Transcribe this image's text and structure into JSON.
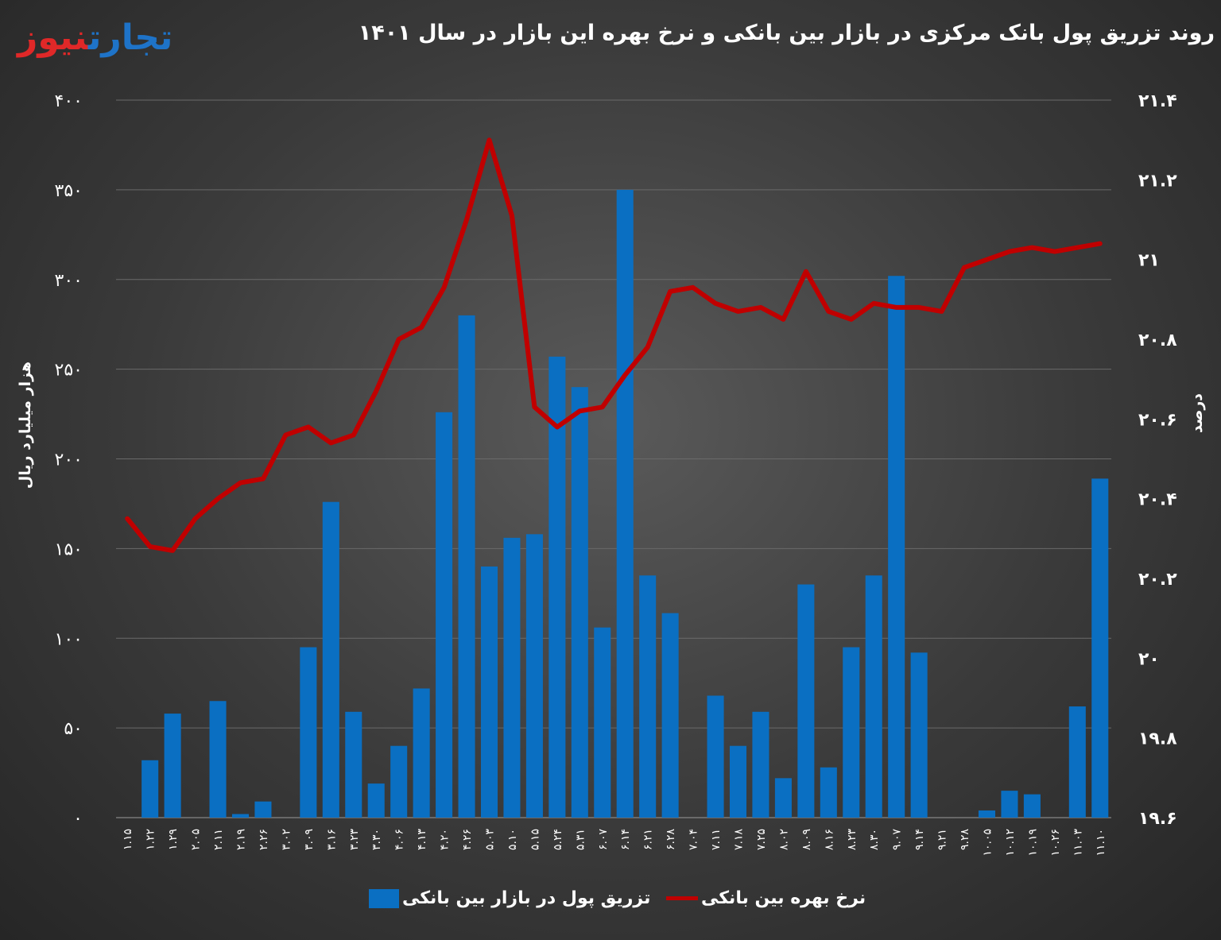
{
  "logo": {
    "part1": "نیوز",
    "part2": "تجارت"
  },
  "chart_data": {
    "type": "bar+line",
    "title": "روند تزریق پول بانک مرکزی در بازار بین بانکی و نرخ بهره این بازار در سال ۱۴۰۱",
    "ylabel_left": "هزار میلیارد ریال",
    "ylabel_right": "درصد",
    "ylim_left": [
      0,
      400
    ],
    "ylim_right": [
      19.6,
      21.4
    ],
    "yticks_left": [
      "۰",
      "۵۰",
      "۱۰۰",
      "۱۵۰",
      "۲۰۰",
      "۲۵۰",
      "۳۰۰",
      "۳۵۰",
      "۴۰۰"
    ],
    "yticks_right": [
      "۱۹.۶",
      "۱۹.۸",
      "۲۰",
      "۲۰.۲",
      "۲۰.۴",
      "۲۰.۶",
      "۲۰.۸",
      "۲۱",
      "۲۱.۲",
      "۲۱.۴"
    ],
    "categories": [
      "۱.۱۵",
      "۱.۲۲",
      "۱.۲۹",
      "۲.۰۵",
      "۲.۱۱",
      "۲.۱۹",
      "۲.۲۶",
      "۳.۰۲",
      "۳.۰۹",
      "۳.۱۶",
      "۳.۲۳",
      "۳.۳۰",
      "۴.۰۶",
      "۴.۱۳",
      "۴.۲۰",
      "۴.۲۶",
      "۵.۰۳",
      "۵.۱۰",
      "۵.۱۵",
      "۵.۲۴",
      "۵.۳۱",
      "۶.۰۷",
      "۶.۱۴",
      "۶.۲۱",
      "۶.۲۸",
      "۷.۰۴",
      "۷.۱۱",
      "۷.۱۸",
      "۷.۲۵",
      "۸.۰۲",
      "۸.۰۹",
      "۸.۱۶",
      "۸.۲۳",
      "۸.۳۰",
      "۹.۰۷",
      "۹.۱۴",
      "۹.۲۱",
      "۹.۲۸",
      "۱۰.۰۵",
      "۱۰.۱۲",
      "۱۰.۱۹",
      "۱۰.۲۶",
      "۱۱.۰۳",
      "۱۱.۱۰"
    ],
    "series": [
      {
        "name": "تزریق پول در بازار بین بانکی",
        "kind": "bar",
        "color": "#0a6fc2",
        "values": [
          0,
          32,
          58,
          0,
          65,
          2,
          9,
          0,
          95,
          176,
          59,
          19,
          40,
          72,
          226,
          280,
          140,
          156,
          158,
          257,
          240,
          106,
          350,
          135,
          114,
          0,
          68,
          40,
          59,
          22,
          130,
          28,
          95,
          135,
          302,
          92,
          0,
          0,
          4,
          15,
          13,
          0,
          62,
          189
        ]
      },
      {
        "name": "نرخ بهره بین بانکی",
        "kind": "line",
        "color": "#c00000",
        "values": [
          20.35,
          20.28,
          20.27,
          20.35,
          20.4,
          20.44,
          20.45,
          20.56,
          20.58,
          20.54,
          20.56,
          20.67,
          20.8,
          20.83,
          20.93,
          21.1,
          21.3,
          21.11,
          20.63,
          20.58,
          20.62,
          20.63,
          20.71,
          20.78,
          20.92,
          20.93,
          20.89,
          20.87,
          20.88,
          20.85,
          20.97,
          20.87,
          20.85,
          20.89,
          20.88,
          20.88,
          20.87,
          20.98,
          21.0,
          21.02,
          21.03,
          21.02,
          21.03,
          21.04
        ]
      }
    ],
    "legend_position": "bottom",
    "grid": true
  }
}
